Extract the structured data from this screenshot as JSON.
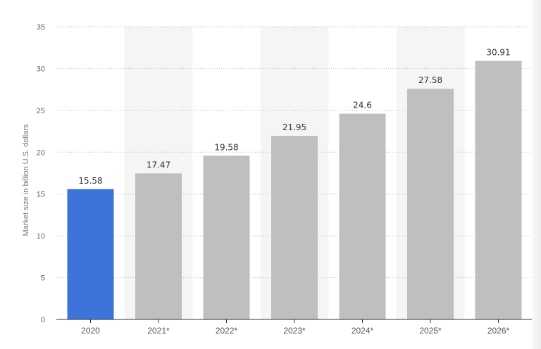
{
  "chart_data": {
    "type": "bar",
    "categories": [
      "2020",
      "2021*",
      "2022*",
      "2023*",
      "2024*",
      "2025*",
      "2026*"
    ],
    "values": [
      15.58,
      17.47,
      19.58,
      21.95,
      24.6,
      27.58,
      30.91
    ],
    "value_labels": [
      "15.58",
      "17.47",
      "19.58",
      "21.95",
      "24.6",
      "27.58",
      "30.91"
    ],
    "highlighted_index": 0,
    "ylabel": "Market size in billion U.S. dollars",
    "xlabel": "",
    "ylim": [
      0,
      35
    ],
    "yticks": [
      0,
      5,
      10,
      15,
      20,
      25,
      30,
      35
    ],
    "grid": "horizontal dotted",
    "colors": {
      "highlight": "#3d74d9",
      "bar": "#bfbfbf",
      "alt_band": "#f5f5f5",
      "gridline": "#bbbbbb",
      "axis": "#333333"
    }
  }
}
